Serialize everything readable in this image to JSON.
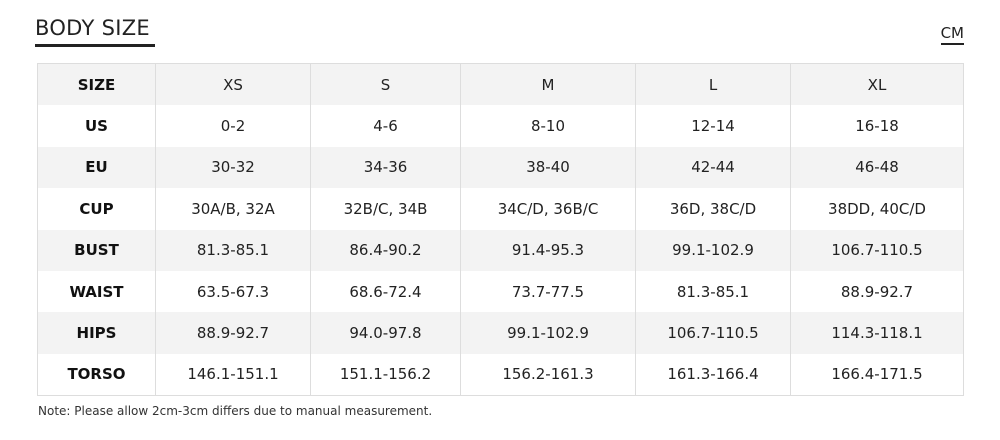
{
  "header": {
    "title": "BODY SIZE",
    "unit": "CM"
  },
  "table": {
    "rows": [
      [
        "SIZE",
        "XS",
        "S",
        "M",
        "L",
        "XL"
      ],
      [
        "US",
        "0-2",
        "4-6",
        "8-10",
        "12-14",
        "16-18"
      ],
      [
        "EU",
        "30-32",
        "34-36",
        "38-40",
        "42-44",
        "46-48"
      ],
      [
        "CUP",
        "30A/B, 32A",
        "32B/C, 34B",
        "34C/D, 36B/C",
        "36D, 38C/D",
        "38DD, 40C/D"
      ],
      [
        "BUST",
        "81.3-85.1",
        "86.4-90.2",
        "91.4-95.3",
        "99.1-102.9",
        "106.7-110.5"
      ],
      [
        "WAIST",
        "63.5-67.3",
        "68.6-72.4",
        "73.7-77.5",
        "81.3-85.1",
        "88.9-92.7"
      ],
      [
        "HIPS",
        "88.9-92.7",
        "94.0-97.8",
        "99.1-102.9",
        "106.7-110.5",
        "114.3-118.1"
      ],
      [
        "TORSO",
        "146.1-151.1",
        "151.1-156.2",
        "156.2-161.3",
        "161.3-166.4",
        "166.4-171.5"
      ]
    ]
  },
  "note": "Note: Please allow 2cm-3cm differs due to manual measurement."
}
